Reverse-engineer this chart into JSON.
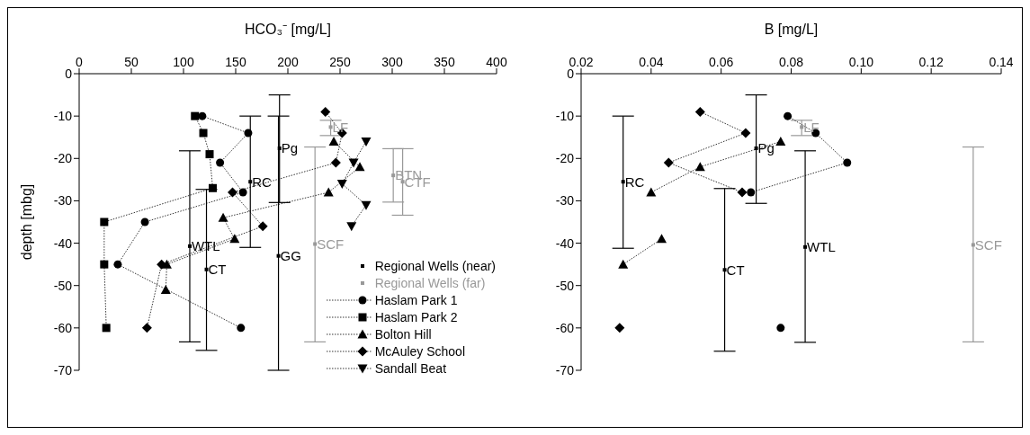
{
  "chart_data": [
    {
      "type": "scatter",
      "xlabel": "HCO₃⁻ [mg/L]",
      "ylabel": "depth [mbg]",
      "xlim": [
        0,
        400
      ],
      "xticks": [
        0,
        50,
        100,
        150,
        200,
        250,
        300,
        350,
        400
      ],
      "ylim": [
        -70,
        0
      ],
      "yticks": [
        0,
        -10,
        -20,
        -30,
        -40,
        -50,
        -60,
        -70
      ],
      "grid": false,
      "legend": "bottom right",
      "series": [
        {
          "name": "Regional Wells (near)",
          "type": "scatter",
          "marker": "square",
          "color": "#000000",
          "x": [
            192,
            164,
            106,
            122,
            191
          ],
          "values": [
            -17.6,
            -25.5,
            -40.7,
            -46.2,
            -43
          ],
          "errors": [
            [
              -30.4,
              -5
            ],
            [
              -41,
              -10
            ],
            [
              -63.3,
              -18.2
            ],
            [
              -65.3,
              -27.3
            ],
            [
              -70,
              -10
            ]
          ]
        },
        {
          "name": "Regional Wells (far)",
          "type": "scatter",
          "marker": "square",
          "color": "#999999",
          "x": [
            241,
            226,
            301,
            310
          ],
          "values": [
            -12.6,
            -40.2,
            -24,
            -25.5
          ],
          "errors": [
            [
              -14.6,
              -11
            ],
            [
              -63.3,
              -17.3
            ],
            [
              -30.3,
              -17.7
            ],
            [
              -33.4,
              -17.7
            ]
          ]
        },
        {
          "name": "Haslam Park 1",
          "type": "line",
          "marker": "circle",
          "line_style": "dotted",
          "color": "#000000",
          "x": [
            118,
            162,
            135,
            157,
            63,
            37,
            155
          ],
          "values": [
            -10,
            -14,
            -21,
            -28,
            -35,
            -45,
            -60
          ]
        },
        {
          "name": "Haslam Park 2",
          "type": "line",
          "marker": "square",
          "line_style": "dotted",
          "color": "#000000",
          "x": [
            111,
            119,
            125,
            128,
            24,
            24,
            26
          ],
          "values": [
            -10,
            -14,
            -19,
            -27,
            -35,
            -45,
            -60
          ]
        },
        {
          "name": "Bolton Hill",
          "type": "line",
          "marker": "triangle",
          "line_style": "dotted",
          "color": "#000000",
          "x": [
            244,
            269,
            239,
            138,
            149,
            84,
            83
          ],
          "values": [
            -16,
            -22,
            -28,
            -34,
            -39,
            -45,
            -51
          ]
        },
        {
          "name": "McAuley School",
          "type": "line",
          "marker": "diamond",
          "line_style": "dotted",
          "color": "#000000",
          "x": [
            236,
            252,
            246,
            147,
            176,
            79,
            65
          ],
          "values": [
            -9,
            -14,
            -21,
            -28,
            -36,
            -45,
            -60
          ]
        },
        {
          "name": "Sandall Beat",
          "type": "line",
          "marker": "triangle-down",
          "line_style": "dotted",
          "color": "#000000",
          "x": [
            275,
            263,
            252,
            275,
            261
          ],
          "values": [
            -16,
            -21,
            -26,
            -31,
            -36
          ]
        }
      ],
      "annotations": [
        {
          "text": "Pg",
          "x": 192,
          "y": -17.6
        },
        {
          "text": "RC",
          "x": 164,
          "y": -25.5
        },
        {
          "text": "WTL",
          "x": 106,
          "y": -40.7
        },
        {
          "text": "CT",
          "x": 122,
          "y": -46.2
        },
        {
          "text": "GG",
          "x": 191,
          "y": -43
        },
        {
          "text": "LF",
          "x": 241,
          "y": -12.6
        },
        {
          "text": "SCF",
          "x": 226,
          "y": -40.2
        },
        {
          "text": "BTN",
          "x": 301,
          "y": -24
        },
        {
          "text": "CTF",
          "x": 310,
          "y": -25.5
        }
      ]
    },
    {
      "type": "scatter",
      "xlabel": "B [mg/L]",
      "xlim": [
        0.02,
        0.14
      ],
      "xticks": [
        0.02,
        0.04,
        0.06,
        0.08,
        {
          "value": 0.1,
          "label": "0.10"
        },
        0.12,
        0.14
      ],
      "ylim": [
        -70,
        0
      ],
      "yticks": [
        0,
        -10,
        -20,
        -30,
        -40,
        -50,
        -60,
        -70
      ],
      "grid": false,
      "series": [
        {
          "type": "scatter",
          "marker": "square",
          "color": "#000000",
          "x": [
            0.032,
            0.07,
            0.061,
            0.084
          ],
          "values": [
            -25.5,
            -17.6,
            -46.3,
            -40.9
          ],
          "errors": [
            [
              -41.2,
              -10
            ],
            [
              -30.6,
              -5
            ],
            [
              -65.5,
              -27.1
            ],
            [
              -63.4,
              -18.2
            ]
          ]
        },
        {
          "type": "scatter",
          "marker": "square",
          "color": "#999999",
          "x": [
            0.083,
            0.132
          ],
          "values": [
            -12.6,
            -40.4
          ],
          "errors": [
            [
              -14.6,
              -11
            ],
            [
              -63.3,
              -17.3
            ]
          ]
        },
        {
          "type": "line",
          "marker": "circle",
          "line_style": "dotted",
          "color": "#000000",
          "x": [
            0.079,
            0.087,
            0.096,
            0.0685,
            null,
            0.077
          ],
          "values": [
            -10,
            -14,
            -21,
            -28,
            null,
            -60
          ]
        },
        {
          "type": "line",
          "marker": "triangle",
          "line_style": "dotted",
          "color": "#000000",
          "x": [
            0.077,
            0.054,
            0.04,
            null,
            0.043,
            0.032
          ],
          "values": [
            -16,
            -22,
            -28,
            null,
            -39,
            -45
          ]
        },
        {
          "type": "line",
          "marker": "diamond",
          "line_style": "dotted",
          "color": "#000000",
          "x": [
            0.054,
            0.067,
            0.045,
            0.066,
            null,
            0.031
          ],
          "values": [
            -9,
            -14,
            -21,
            -28,
            null,
            -60
          ]
        }
      ],
      "annotations": [
        {
          "text": "RC",
          "x": 0.032,
          "y": -25.5
        },
        {
          "text": "Pg",
          "x": 0.07,
          "y": -17.6
        },
        {
          "text": "CT",
          "x": 0.061,
          "y": -46.3
        },
        {
          "text": "WTL",
          "x": 0.084,
          "y": -40.9
        },
        {
          "text": "LF",
          "x": 0.083,
          "y": -12.6
        },
        {
          "text": "SCF",
          "x": 0.132,
          "y": -40.4
        }
      ]
    }
  ]
}
